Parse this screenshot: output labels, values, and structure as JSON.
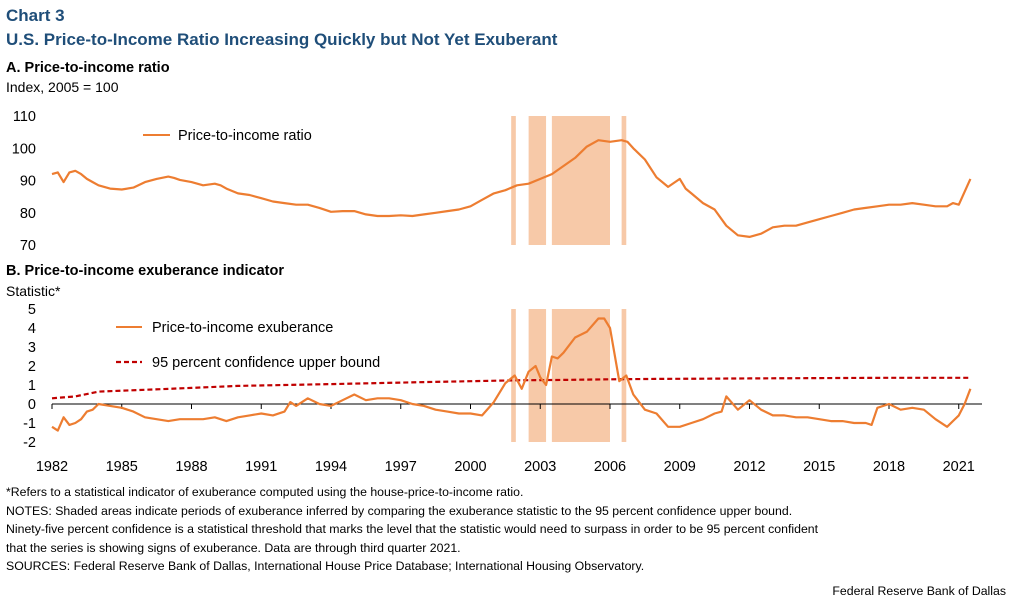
{
  "header": {
    "chart_number": "Chart 3",
    "title": "U.S. Price-to-Income Ratio Increasing Quickly but Not Yet Exuberant"
  },
  "colors": {
    "title": "#1f4e79",
    "series": "#ed7d31",
    "shade": "#f7c9a8",
    "bound": "#c00000"
  },
  "chart_data": [
    {
      "type": "line",
      "panel_title": "A. Price-to-income ratio",
      "ylabel": "Index, 2005 = 100",
      "ylim": [
        70,
        110
      ],
      "yticks": [
        "110",
        "100",
        "90",
        "80",
        "70"
      ],
      "legend": "Price-to-income ratio",
      "legend_position": "top-left",
      "shaded_periods": [
        [
          2001.75,
          2001.95
        ],
        [
          2002.5,
          2003.25
        ],
        [
          2003.5,
          2006.0
        ],
        [
          2006.5,
          2006.7
        ]
      ],
      "series": [
        {
          "name": "Price-to-income ratio",
          "x": [
            1982.0,
            1982.25,
            1982.5,
            1982.75,
            1983.0,
            1983.25,
            1983.5,
            1983.75,
            1984.0,
            1984.5,
            1985.0,
            1985.5,
            1986.0,
            1986.5,
            1987.0,
            1987.25,
            1987.5,
            1988.0,
            1988.5,
            1989.0,
            1989.25,
            1989.5,
            1990.0,
            1990.5,
            1991.0,
            1991.5,
            1992.0,
            1992.5,
            1993.0,
            1993.5,
            1994.0,
            1994.5,
            1995.0,
            1995.5,
            1996.0,
            1996.5,
            1997.0,
            1997.5,
            1998.0,
            1998.5,
            1999.0,
            1999.5,
            2000.0,
            2000.5,
            2001.0,
            2001.5,
            2002.0,
            2002.5,
            2003.0,
            2003.5,
            2004.0,
            2004.5,
            2005.0,
            2005.5,
            2006.0,
            2006.5,
            2006.75,
            2007.0,
            2007.5,
            2008.0,
            2008.5,
            2009.0,
            2009.25,
            2009.5,
            2010.0,
            2010.5,
            2011.0,
            2011.5,
            2012.0,
            2012.5,
            2013.0,
            2013.5,
            2014.0,
            2014.5,
            2015.0,
            2015.5,
            2016.0,
            2016.5,
            2017.0,
            2017.5,
            2018.0,
            2018.5,
            2019.0,
            2019.5,
            2020.0,
            2020.5,
            2020.75,
            2021.0,
            2021.5
          ],
          "values": [
            92.0,
            92.5,
            89.5,
            92.5,
            93.0,
            92.0,
            90.5,
            89.5,
            88.5,
            87.5,
            87.2,
            87.8,
            89.5,
            90.5,
            91.2,
            90.8,
            90.2,
            89.5,
            88.5,
            89.0,
            88.5,
            87.5,
            86.0,
            85.5,
            84.5,
            83.5,
            83.0,
            82.5,
            82.5,
            81.5,
            80.3,
            80.5,
            80.5,
            79.5,
            79.0,
            79.0,
            79.2,
            79.0,
            79.5,
            80.0,
            80.5,
            81.0,
            82.0,
            84.0,
            86.0,
            87.0,
            88.5,
            89.0,
            90.5,
            92.0,
            94.5,
            97.0,
            100.5,
            102.5,
            102.0,
            102.5,
            102.0,
            100.0,
            96.5,
            91.0,
            88.0,
            90.5,
            87.5,
            86.0,
            83.0,
            81.0,
            76.0,
            73.0,
            72.5,
            73.5,
            75.5,
            76.0,
            76.0,
            77.0,
            78.0,
            79.0,
            80.0,
            81.0,
            81.5,
            82.0,
            82.5,
            82.5,
            83.0,
            82.5,
            82.0,
            82.0,
            83.0,
            82.5,
            90.5
          ]
        }
      ]
    },
    {
      "type": "line",
      "panel_title": "B. Price-to-income exuberance indicator",
      "ylabel": "Statistic*",
      "ylim": [
        -2,
        5
      ],
      "yticks": [
        "5",
        "4",
        "3",
        "2",
        "1",
        "0",
        "-1",
        "-2"
      ],
      "xlim": [
        1982,
        2022
      ],
      "categories": [
        "1982",
        "1985",
        "1988",
        "1991",
        "1994",
        "1997",
        "2000",
        "2003",
        "2006",
        "2009",
        "2012",
        "2015",
        "2018",
        "2021"
      ],
      "legend_position": "top-left",
      "shaded_periods": [
        [
          2001.75,
          2001.95
        ],
        [
          2002.5,
          2003.25
        ],
        [
          2003.5,
          2006.0
        ],
        [
          2006.5,
          2006.7
        ]
      ],
      "series": [
        {
          "name": "Price-to-income exuberance",
          "style": "solid",
          "x": [
            1982.0,
            1982.25,
            1982.5,
            1982.75,
            1983.0,
            1983.25,
            1983.5,
            1983.75,
            1984.0,
            1984.5,
            1985.0,
            1985.5,
            1986.0,
            1986.5,
            1987.0,
            1987.5,
            1988.0,
            1988.5,
            1989.0,
            1989.5,
            1990.0,
            1990.5,
            1991.0,
            1991.5,
            1992.0,
            1992.25,
            1992.5,
            1993.0,
            1993.5,
            1994.0,
            1994.5,
            1995.0,
            1995.5,
            1996.0,
            1996.5,
            1997.0,
            1997.5,
            1998.0,
            1998.5,
            1999.0,
            1999.5,
            2000.0,
            2000.5,
            2001.0,
            2001.5,
            2001.9,
            2002.2,
            2002.5,
            2002.8,
            2003.0,
            2003.25,
            2003.5,
            2003.75,
            2004.0,
            2004.5,
            2005.0,
            2005.5,
            2005.75,
            2006.0,
            2006.4,
            2006.7,
            2007.0,
            2007.5,
            2008.0,
            2008.5,
            2009.0,
            2009.5,
            2010.0,
            2010.5,
            2010.8,
            2011.0,
            2011.5,
            2012.0,
            2012.5,
            2013.0,
            2013.5,
            2014.0,
            2014.5,
            2015.0,
            2015.5,
            2016.0,
            2016.5,
            2017.0,
            2017.25,
            2017.5,
            2018.0,
            2018.5,
            2019.0,
            2019.5,
            2020.0,
            2020.5,
            2020.75,
            2021.0,
            2021.25,
            2021.5
          ],
          "values": [
            -1.2,
            -1.4,
            -0.7,
            -1.1,
            -1.0,
            -0.8,
            -0.4,
            -0.3,
            0.0,
            -0.1,
            -0.2,
            -0.4,
            -0.7,
            -0.8,
            -0.9,
            -0.8,
            -0.8,
            -0.8,
            -0.7,
            -0.9,
            -0.7,
            -0.6,
            -0.5,
            -0.6,
            -0.4,
            0.1,
            -0.1,
            0.3,
            0.0,
            -0.1,
            0.2,
            0.5,
            0.2,
            0.3,
            0.3,
            0.2,
            0.0,
            -0.1,
            -0.3,
            -0.4,
            -0.5,
            -0.5,
            -0.6,
            0.1,
            1.1,
            1.5,
            0.8,
            1.7,
            2.0,
            1.4,
            1.0,
            2.5,
            2.4,
            2.7,
            3.5,
            3.8,
            4.5,
            4.5,
            4.0,
            1.2,
            1.5,
            0.5,
            -0.3,
            -0.5,
            -1.2,
            -1.2,
            -1.0,
            -0.8,
            -0.5,
            -0.4,
            0.4,
            -0.3,
            0.2,
            -0.3,
            -0.6,
            -0.6,
            -0.7,
            -0.7,
            -0.8,
            -0.9,
            -0.9,
            -1.0,
            -1.0,
            -1.1,
            -0.2,
            0.0,
            -0.3,
            -0.2,
            -0.3,
            -0.8,
            -1.2,
            -0.9,
            -0.6,
            0.0,
            0.8
          ]
        },
        {
          "name": "95 percent confidence upper bound",
          "style": "dashed",
          "x": [
            1982.0,
            1983.0,
            1984.0,
            1986.0,
            1988.0,
            1990.0,
            1992.0,
            1994.0,
            1996.0,
            1998.0,
            2000.0,
            2002.0,
            2004.0,
            2006.0,
            2008.0,
            2010.0,
            2012.0,
            2014.0,
            2016.0,
            2018.0,
            2020.0,
            2021.5
          ],
          "values": [
            0.3,
            0.4,
            0.65,
            0.75,
            0.85,
            0.95,
            1.0,
            1.05,
            1.1,
            1.15,
            1.2,
            1.25,
            1.27,
            1.3,
            1.32,
            1.33,
            1.35,
            1.36,
            1.37,
            1.38,
            1.38,
            1.38
          ]
        }
      ]
    }
  ],
  "notes": {
    "footnote": "*Refers to a statistical indicator of exuberance computed using the house-price-to-income ratio.",
    "notes_line1": "NOTES: Shaded areas indicate periods of exuberance inferred by comparing the exuberance statistic to the 95 percent confidence upper bound.",
    "notes_line2": "Ninety-five percent confidence is a statistical threshold that marks the level that the statistic would need to surpass in order to be 95 percent confident",
    "notes_line3": "that the series is showing signs of exuberance. Data are through third quarter 2021.",
    "sources": "SOURCES: Federal Reserve Bank of Dallas, International House Price Database; International Housing Observatory."
  },
  "credit": "Federal Reserve Bank of Dallas"
}
